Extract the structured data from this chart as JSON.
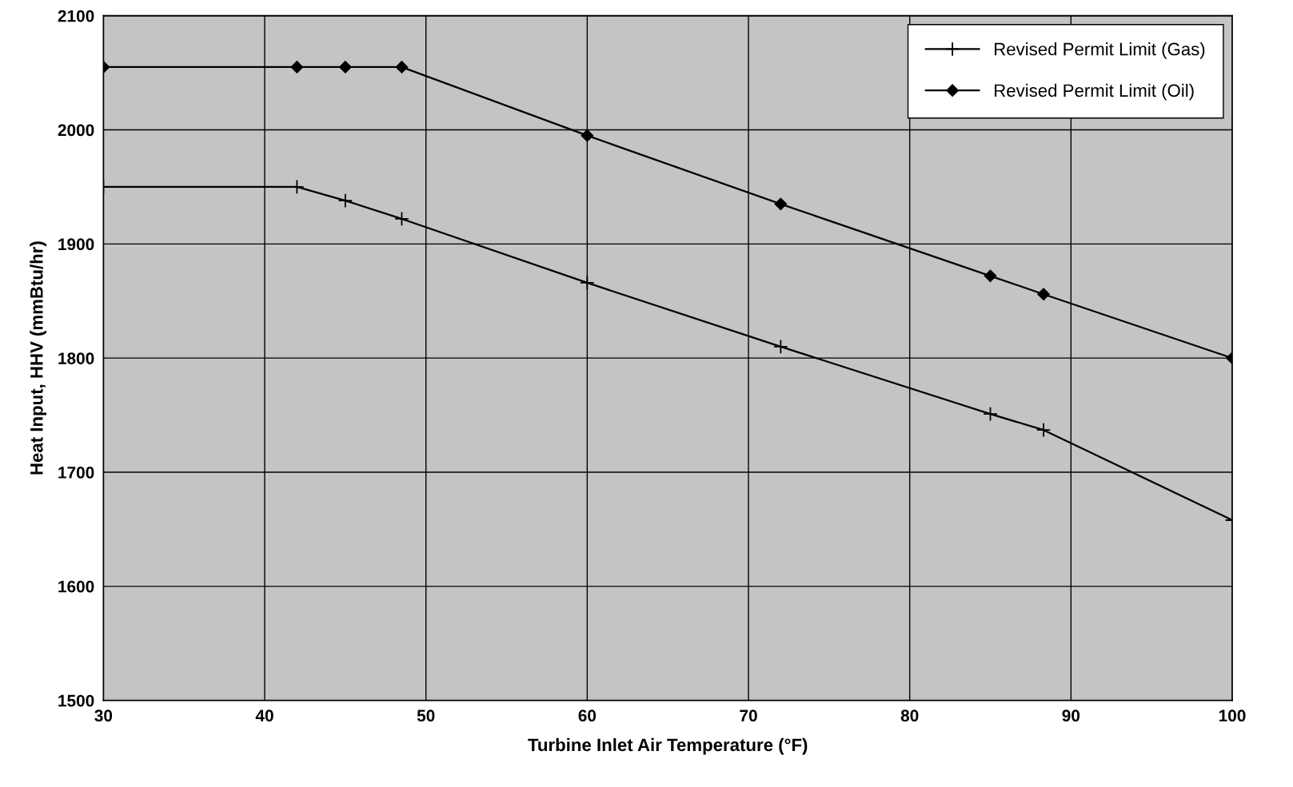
{
  "chart_data": {
    "type": "line",
    "xlabel": "Turbine Inlet Air Temperature (°F)",
    "ylabel": "Heat Input, HHV (mmBtu/hr)",
    "xlim": [
      30,
      100
    ],
    "xticks": [
      30,
      40,
      50,
      60,
      70,
      80,
      90,
      100
    ],
    "ylim": [
      1500,
      2100
    ],
    "yticks": [
      1500,
      1600,
      1700,
      1800,
      1900,
      2000,
      2100
    ],
    "grid": true,
    "legend": "top right",
    "line_style": "solid",
    "series": [
      {
        "name": "Revised Permit Limit (Gas)",
        "color": "#000000",
        "marker": "cross",
        "x": [
          30,
          42,
          45,
          48.5,
          60,
          72,
          85,
          88.3,
          100
        ],
        "values": [
          1950,
          1950,
          1938,
          1922,
          1866,
          1810,
          1751,
          1737,
          1658
        ]
      },
      {
        "name": "Revised Permit Limit (Oil)",
        "color": "#000000",
        "marker": "diamond",
        "x": [
          30,
          42,
          45,
          48.5,
          60,
          72,
          85,
          88.3,
          100
        ],
        "values": [
          2055,
          2055,
          2055,
          2055,
          1995,
          1935,
          1872,
          1856,
          1800
        ]
      }
    ]
  }
}
